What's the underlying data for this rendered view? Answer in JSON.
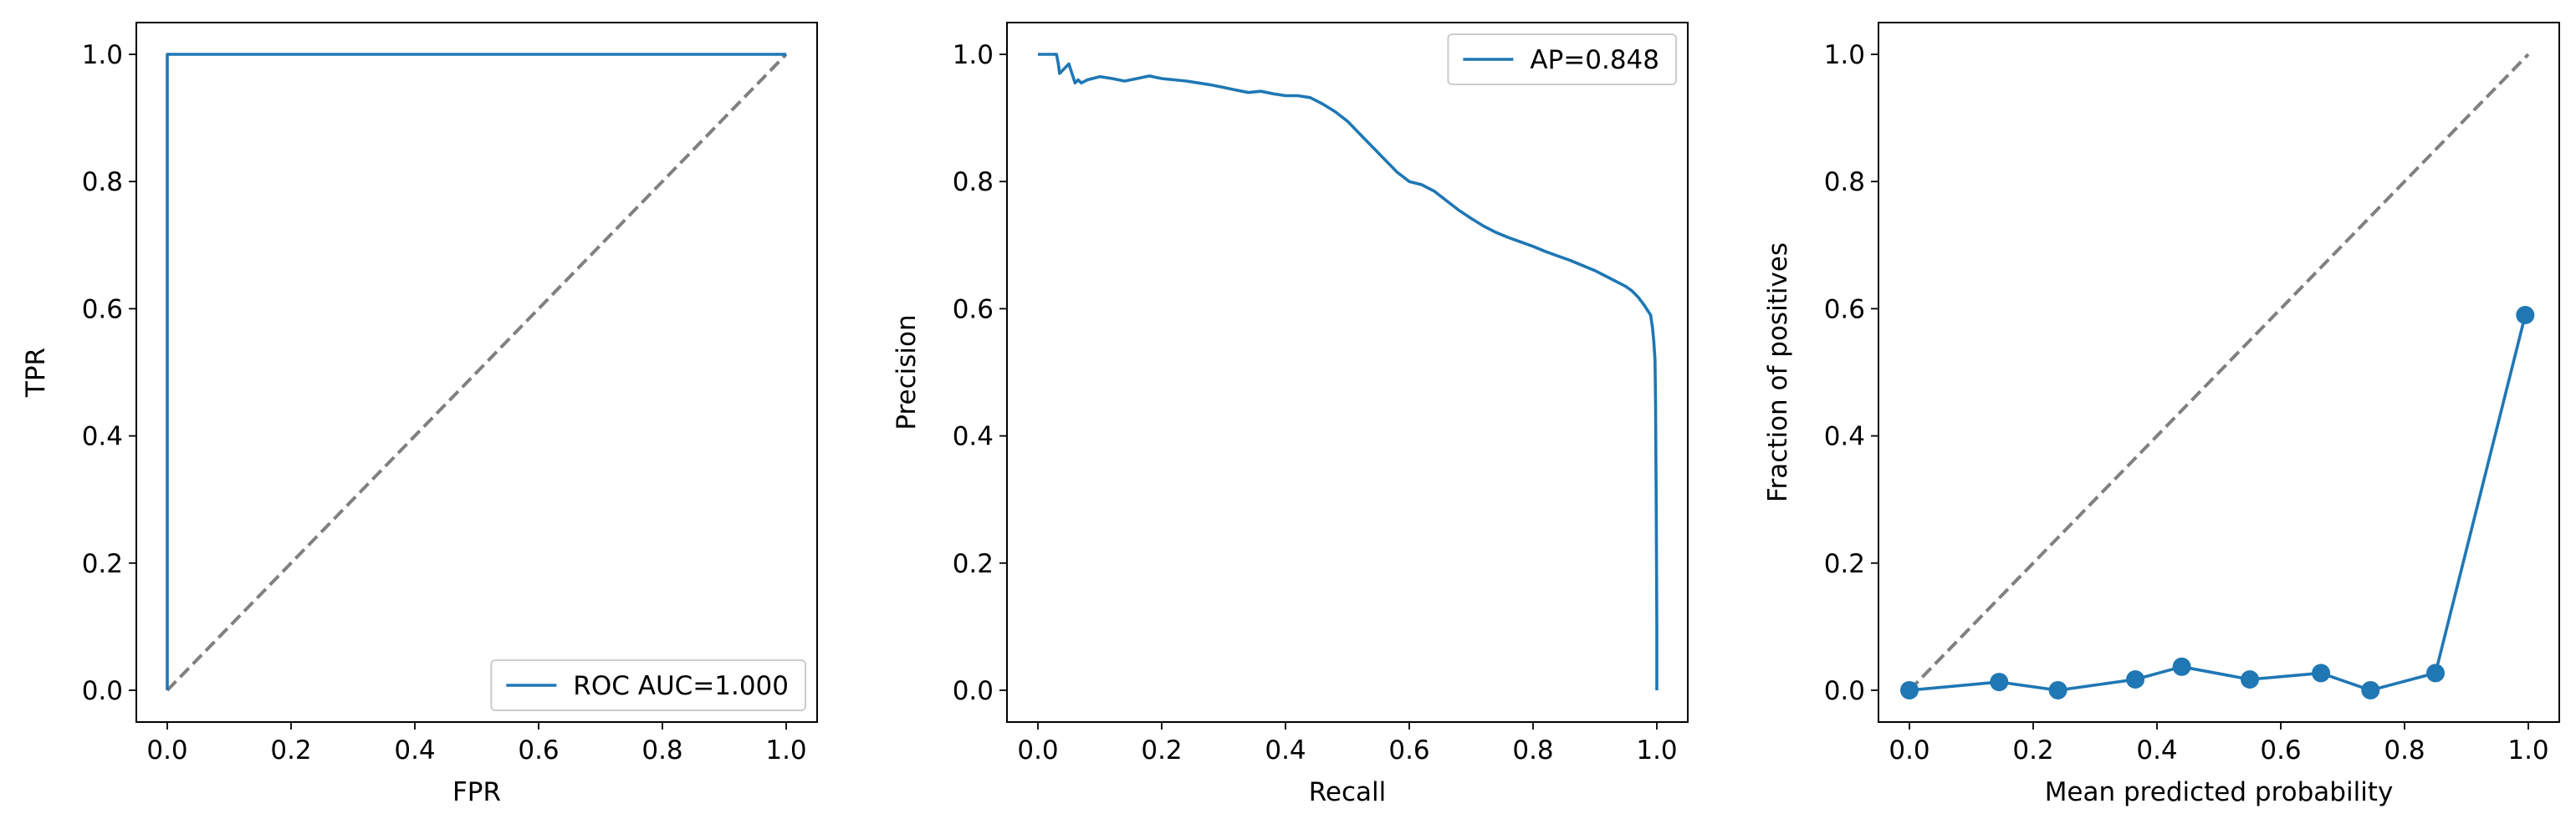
{
  "chart_data": [
    {
      "type": "line",
      "title": "",
      "xlabel": "FPR",
      "ylabel": "TPR",
      "xlim": [
        -0.05,
        1.05
      ],
      "ylim": [
        -0.05,
        1.05
      ],
      "xticks": [
        "0.0",
        "0.2",
        "0.4",
        "0.6",
        "0.8",
        "1.0"
      ],
      "yticks": [
        "0.0",
        "0.2",
        "0.4",
        "0.6",
        "0.8",
        "1.0"
      ],
      "grid": false,
      "legend_position": "lower right",
      "series": [
        {
          "name": "ROC AUC=1.000",
          "color": "#1f77b4",
          "x": [
            0.0,
            0.0,
            1.0
          ],
          "y": [
            0.0,
            1.0,
            1.0
          ]
        },
        {
          "name": "",
          "color": "#808080",
          "dashed": true,
          "x": [
            0.0,
            1.0
          ],
          "y": [
            0.0,
            1.0
          ]
        }
      ]
    },
    {
      "type": "line",
      "title": "",
      "xlabel": "Recall",
      "ylabel": "Precision",
      "xlim": [
        -0.05,
        1.05
      ],
      "ylim": [
        -0.05,
        1.05
      ],
      "xticks": [
        "0.0",
        "0.2",
        "0.4",
        "0.6",
        "0.8",
        "1.0"
      ],
      "yticks": [
        "0.0",
        "0.2",
        "0.4",
        "0.6",
        "0.8",
        "1.0"
      ],
      "grid": false,
      "legend_position": "upper right",
      "series": [
        {
          "name": "AP=0.848",
          "color": "#1f77b4",
          "x": [
            0.0,
            0.03,
            0.033,
            0.035,
            0.04,
            0.045,
            0.05,
            0.06,
            0.065,
            0.07,
            0.08,
            0.1,
            0.12,
            0.14,
            0.16,
            0.18,
            0.2,
            0.22,
            0.24,
            0.26,
            0.28,
            0.3,
            0.32,
            0.34,
            0.36,
            0.38,
            0.4,
            0.42,
            0.44,
            0.46,
            0.48,
            0.5,
            0.52,
            0.54,
            0.56,
            0.58,
            0.6,
            0.62,
            0.64,
            0.66,
            0.68,
            0.7,
            0.72,
            0.74,
            0.76,
            0.78,
            0.8,
            0.82,
            0.84,
            0.86,
            0.88,
            0.9,
            0.92,
            0.94,
            0.95,
            0.96,
            0.97,
            0.98,
            0.99,
            0.993,
            0.995,
            0.997,
            0.998,
            0.999,
            1.0,
            1.0
          ],
          "y": [
            1.0,
            1.0,
            0.985,
            0.97,
            0.975,
            0.98,
            0.985,
            0.955,
            0.96,
            0.955,
            0.96,
            0.965,
            0.962,
            0.958,
            0.962,
            0.966,
            0.962,
            0.96,
            0.958,
            0.955,
            0.952,
            0.948,
            0.944,
            0.94,
            0.942,
            0.938,
            0.935,
            0.935,
            0.932,
            0.922,
            0.91,
            0.895,
            0.875,
            0.855,
            0.835,
            0.815,
            0.8,
            0.795,
            0.785,
            0.77,
            0.755,
            0.742,
            0.73,
            0.72,
            0.712,
            0.705,
            0.698,
            0.69,
            0.683,
            0.676,
            0.668,
            0.66,
            0.65,
            0.64,
            0.635,
            0.628,
            0.618,
            0.605,
            0.59,
            0.57,
            0.55,
            0.52,
            0.45,
            0.28,
            0.1,
            0.0
          ]
        }
      ]
    },
    {
      "type": "line",
      "title": "",
      "xlabel": "Mean predicted probability",
      "ylabel": "Fraction of positives",
      "xlim": [
        -0.05,
        1.05
      ],
      "ylim": [
        -0.05,
        1.05
      ],
      "xticks": [
        "0.0",
        "0.2",
        "0.4",
        "0.6",
        "0.8",
        "1.0"
      ],
      "yticks": [
        "0.0",
        "0.2",
        "0.4",
        "0.6",
        "0.8",
        "1.0"
      ],
      "grid": false,
      "legend_position": "none",
      "series": [
        {
          "name": "",
          "color": "#1f77b4",
          "markers": true,
          "x": [
            0.0,
            0.145,
            0.24,
            0.365,
            0.44,
            0.55,
            0.665,
            0.745,
            0.85,
            0.995
          ],
          "y": [
            0.0,
            0.013,
            0.0,
            0.017,
            0.037,
            0.017,
            0.027,
            0.0,
            0.027,
            0.59
          ]
        },
        {
          "name": "",
          "color": "#808080",
          "dashed": true,
          "x": [
            0.0,
            1.0
          ],
          "y": [
            0.0,
            1.0
          ]
        }
      ]
    }
  ]
}
